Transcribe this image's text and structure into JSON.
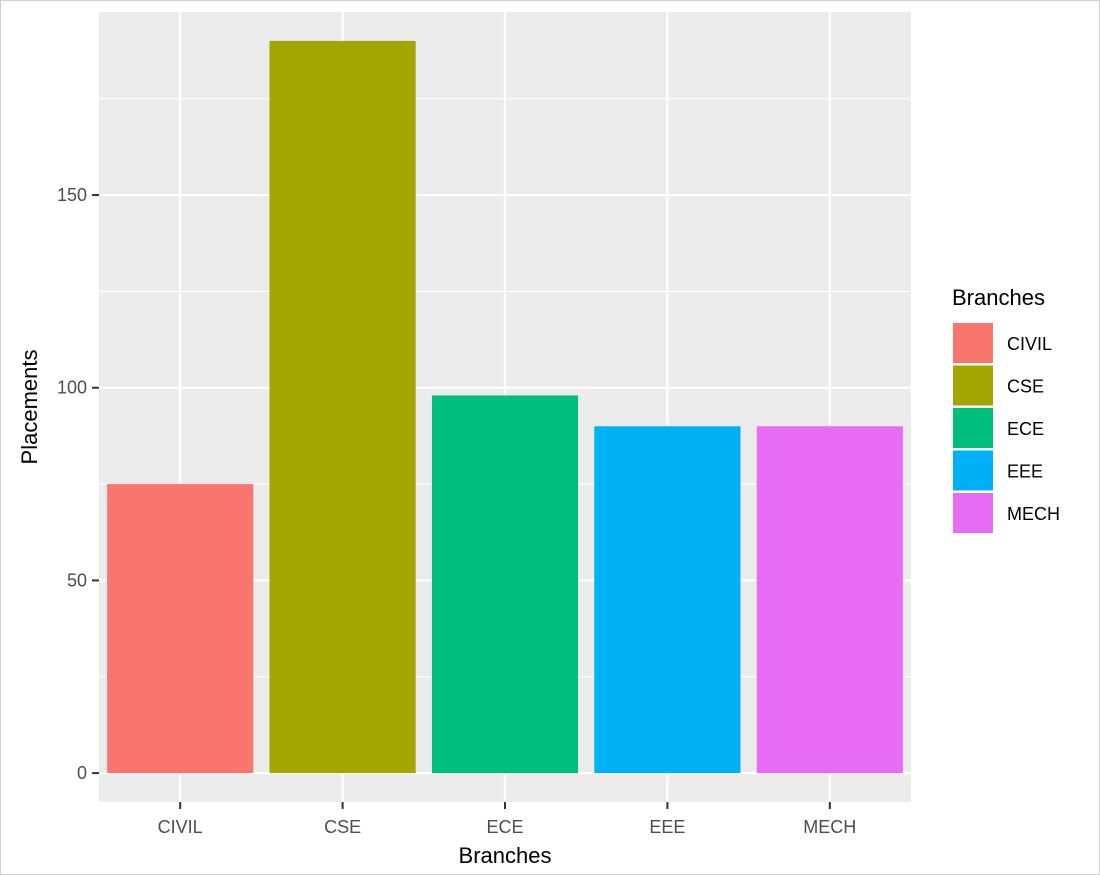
{
  "chart_data": {
    "type": "bar",
    "categories": [
      "CIVIL",
      "CSE",
      "ECE",
      "EEE",
      "MECH"
    ],
    "values": [
      75,
      190,
      98,
      90,
      90
    ],
    "colors": [
      "#F8766D",
      "#A3A500",
      "#00BF7D",
      "#00B0F6",
      "#E76BF3"
    ],
    "xlabel": "Branches",
    "ylabel": "Placements",
    "ylim": [
      -7.5,
      197.5
    ],
    "yticks": [
      0,
      50,
      100,
      150
    ],
    "ytick_labels": [
      "0",
      "50",
      "100",
      "150"
    ],
    "grid": true,
    "legend": {
      "title": "Branches",
      "placement": "right",
      "entries": [
        "CIVIL",
        "CSE",
        "ECE",
        "EEE",
        "MECH"
      ]
    }
  }
}
